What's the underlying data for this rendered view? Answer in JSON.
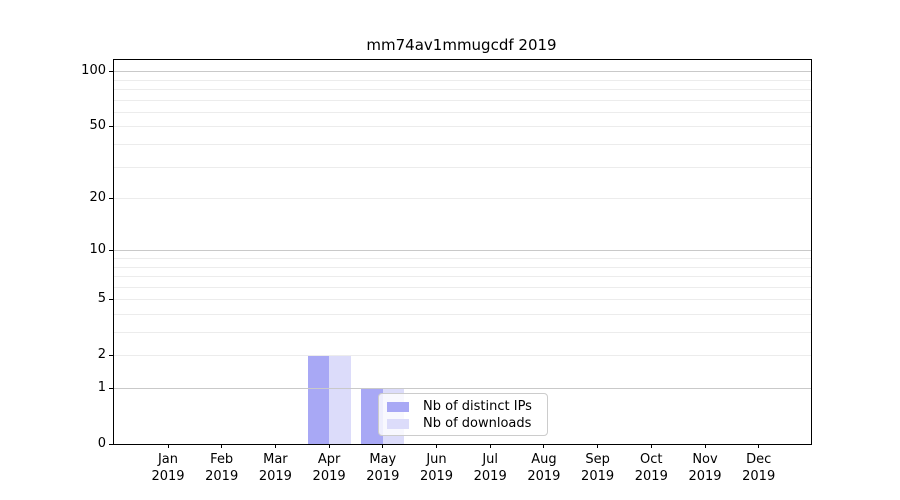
{
  "title": "mm74av1mmugcdf 2019",
  "colors": {
    "distinct_ips": "#a8a8f5",
    "downloads": "#dcdcfa",
    "grid_major": "#c9c9c9",
    "grid_minor": "#ececec",
    "spine": "#000000",
    "legend_border": "#cccccc"
  },
  "legend": {
    "items": [
      {
        "label": "Nb of distinct IPs",
        "color_key": "distinct_ips"
      },
      {
        "label": "Nb of downloads",
        "color_key": "downloads"
      }
    ]
  },
  "chart_data": {
    "type": "bar",
    "title": "mm74av1mmugcdf 2019",
    "categories": [
      "Jan 2019",
      "Feb 2019",
      "Mar 2019",
      "Apr 2019",
      "May 2019",
      "Jun 2019",
      "Jul 2019",
      "Aug 2019",
      "Sep 2019",
      "Oct 2019",
      "Nov 2019",
      "Dec 2019"
    ],
    "series": [
      {
        "name": "Nb of distinct IPs",
        "values": [
          0,
          0,
          0,
          2,
          1,
          0,
          0,
          0,
          0,
          0,
          0,
          0
        ]
      },
      {
        "name": "Nb of downloads",
        "values": [
          0,
          0,
          0,
          2,
          1,
          0,
          0,
          0,
          0,
          0,
          0,
          0
        ]
      }
    ],
    "xlabel": "",
    "ylabel": "",
    "yscale": "log1p",
    "ylim": [
      0,
      115
    ],
    "yticks": [
      0,
      1,
      2,
      5,
      10,
      20,
      50,
      100
    ],
    "grid_major_lines": [
      1,
      10,
      100
    ],
    "grid_minor_lines": [
      2,
      3,
      4,
      5,
      6,
      7,
      8,
      9,
      20,
      30,
      40,
      50,
      60,
      70,
      80,
      90
    ],
    "grid": "horizontal",
    "legend_position": "lower-center"
  }
}
